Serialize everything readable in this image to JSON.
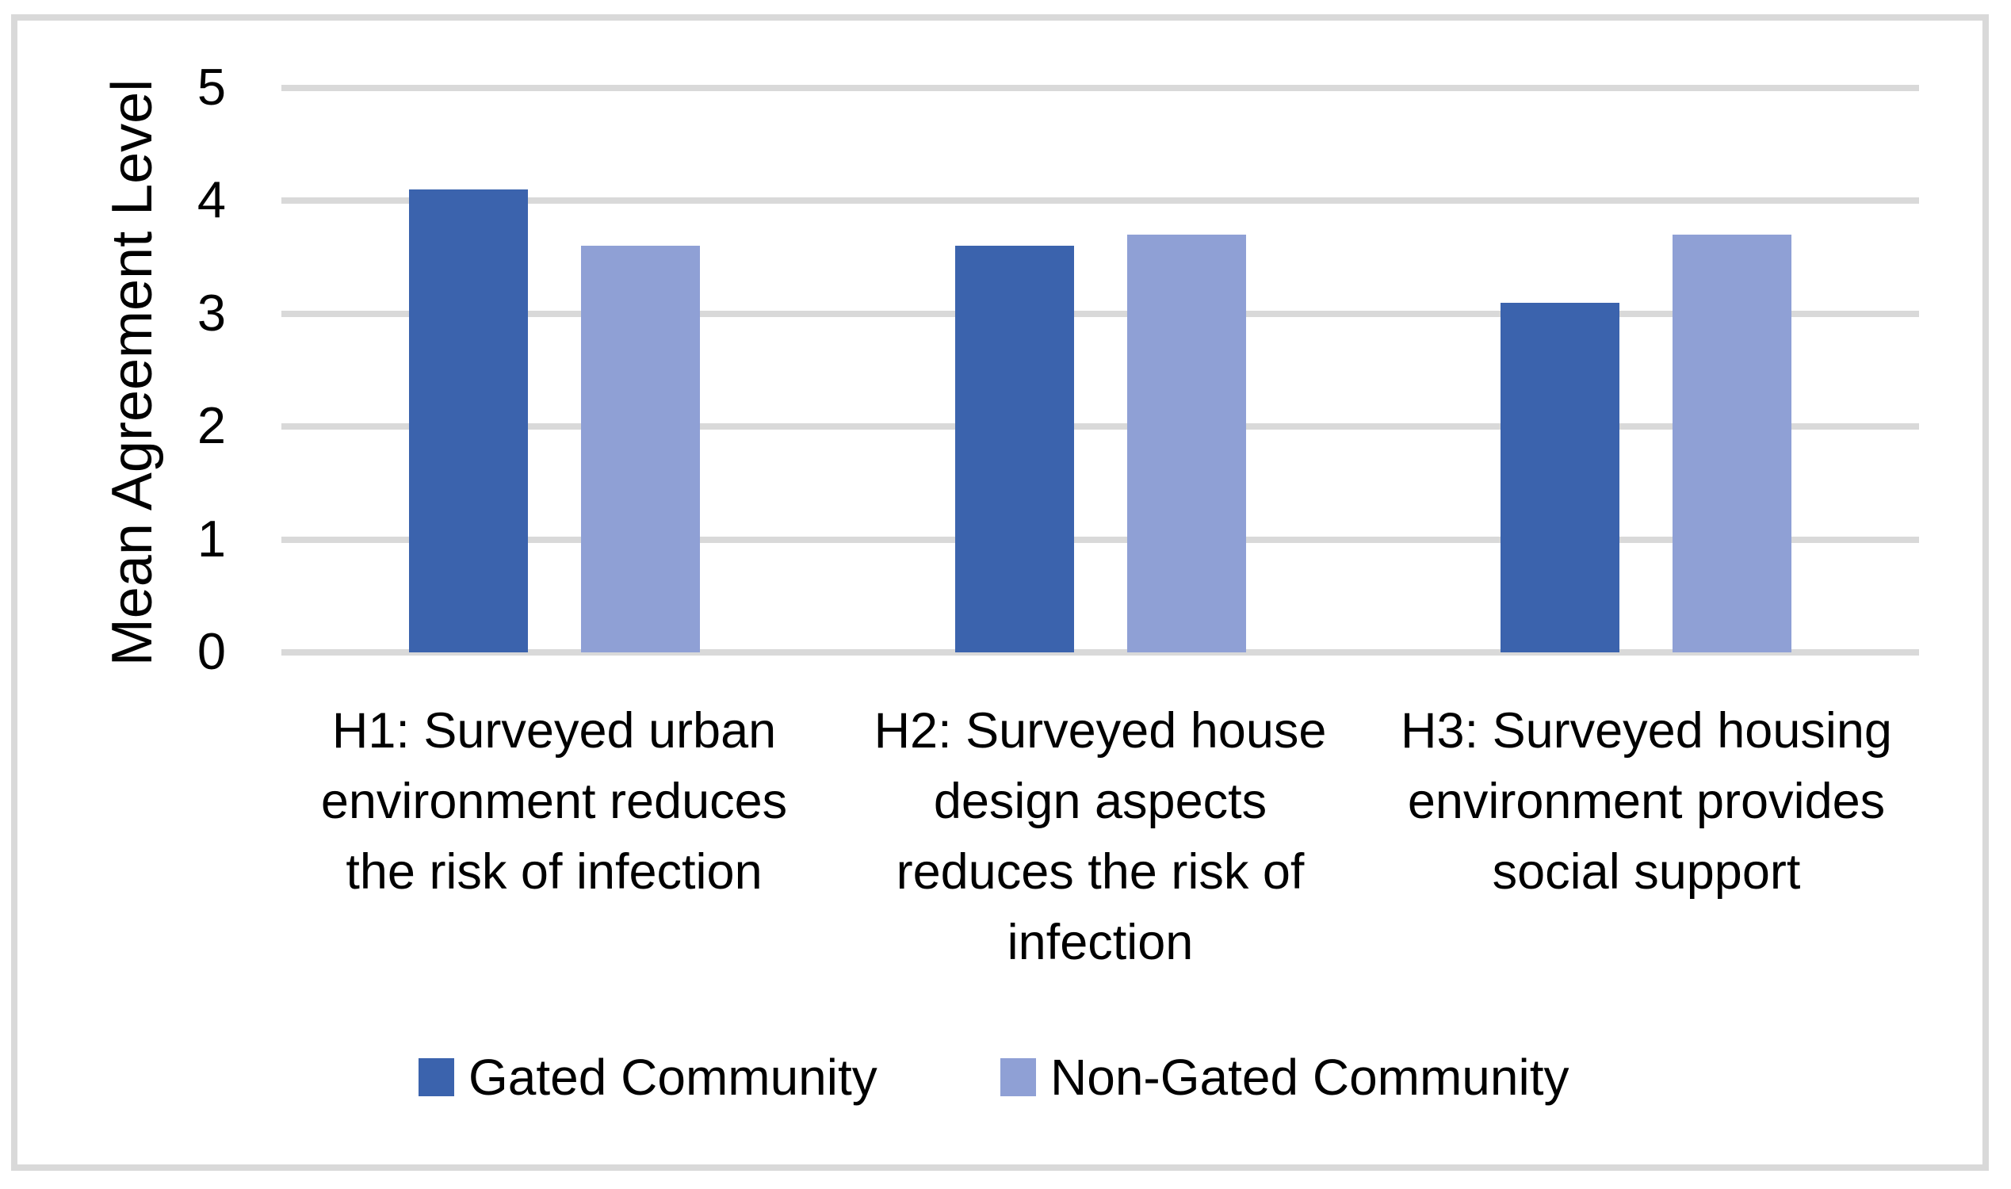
{
  "chart_data": {
    "type": "bar",
    "categories": [
      "H1: Surveyed urban\nenvironment reduces\nthe risk of infection",
      "H2: Surveyed house\ndesign aspects\nreduces the risk of\ninfection",
      "H3: Surveyed housing\nenvironment provides\nsocial support"
    ],
    "series": [
      {
        "name": "Gated Community",
        "color": "#3B63AD",
        "values": [
          4.1,
          3.6,
          3.1
        ]
      },
      {
        "name": "Non-Gated Community",
        "color": "#8FA0D5",
        "values": [
          3.6,
          3.7,
          3.7
        ]
      }
    ],
    "title": "",
    "xlabel": "",
    "ylabel": "Mean Agreement Level",
    "ylim": [
      0,
      5
    ],
    "ytick_step": 1,
    "yticks": [
      "0",
      "1",
      "2",
      "3",
      "4",
      "5"
    ],
    "grid": true,
    "legend_position": "bottom"
  },
  "palette": {
    "gridline": "#D9D9D9",
    "frame_border": "#D9D9D9",
    "text": "#000000",
    "background": "#FFFFFF"
  }
}
